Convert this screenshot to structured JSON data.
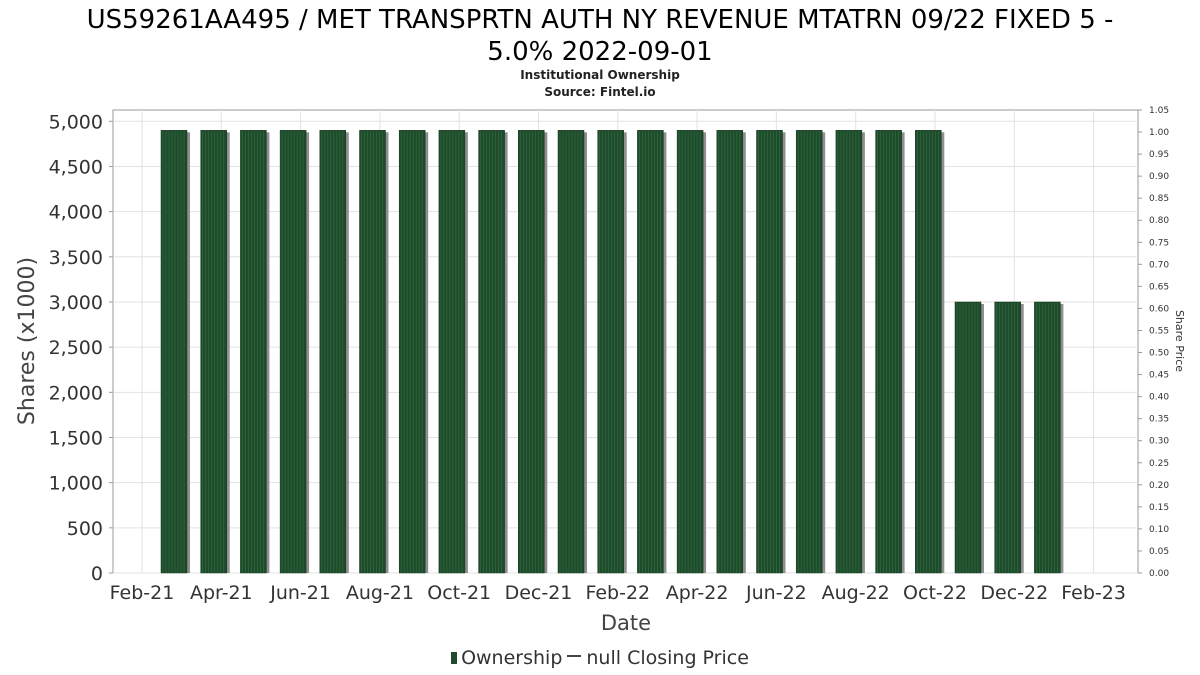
{
  "chart_data": {
    "type": "bar",
    "title": "US59261AA495 / MET TRANSPRTN AUTH NY REVENUE MTATRN 09/22 FIXED 5 - 5.0% 2022-09-01",
    "title_lines": [
      "US59261AA495 / MET TRANSPRTN AUTH NY REVENUE MTATRN 09/22 FIXED 5 -",
      "5.0% 2022-09-01"
    ],
    "subtitle": "Institutional Ownership",
    "source": "Source: Fintel.io",
    "xlabel": "Date",
    "ylabel": "Shares (x1000)",
    "y2label": "Share Price",
    "ylim": [
      0,
      5125
    ],
    "y2lim": [
      0,
      1.05
    ],
    "yticks": [
      "0",
      "500",
      "1,000",
      "1,500",
      "2,000",
      "2,500",
      "3,000",
      "3,500",
      "4,000",
      "4,500",
      "5,000"
    ],
    "y2ticks": [
      "0.00",
      "0.05",
      "0.10",
      "0.15",
      "0.20",
      "0.25",
      "0.30",
      "0.35",
      "0.40",
      "0.45",
      "0.50",
      "0.55",
      "0.60",
      "0.65",
      "0.70",
      "0.75",
      "0.80",
      "0.85",
      "0.90",
      "0.95",
      "1.00",
      "1.05"
    ],
    "xticks": [
      "Feb-21",
      "Apr-21",
      "Jun-21",
      "Aug-21",
      "Oct-21",
      "Dec-21",
      "Feb-22",
      "Apr-22",
      "Jun-22",
      "Aug-22",
      "Oct-22",
      "Dec-22",
      "Feb-23"
    ],
    "grid": true,
    "legend_position": "bottom",
    "series": [
      {
        "name": "Ownership",
        "color": "#1f4a2c",
        "values": [
          4900,
          4900,
          4900,
          4900,
          4900,
          4900,
          4900,
          4900,
          4900,
          4900,
          4900,
          4900,
          4900,
          4900,
          4900,
          4900,
          4900,
          4900,
          4900,
          4900,
          3000,
          3000,
          3000
        ]
      }
    ],
    "legend": {
      "ownership_label": "Ownership",
      "price_label": "null Closing Price"
    }
  }
}
